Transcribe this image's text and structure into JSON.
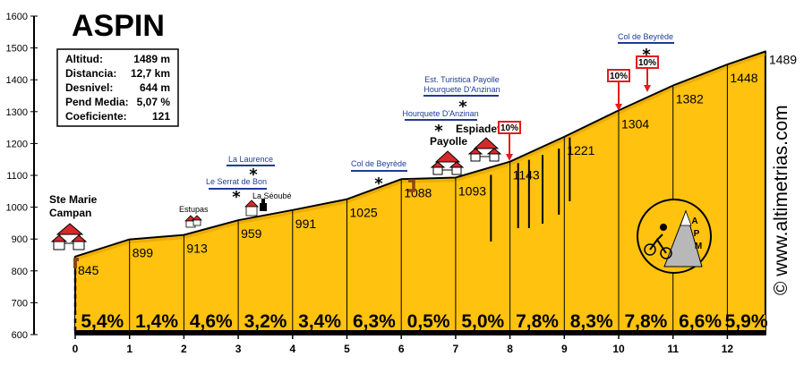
{
  "chart_data": {
    "type": "area",
    "title": "ASPIN",
    "xlabel": "",
    "ylabel": "",
    "ylim": [
      600,
      1600
    ],
    "xlim": [
      0,
      12.7
    ],
    "y_ticks": [
      "600",
      "700",
      "800",
      "900",
      "1000",
      "1100",
      "1200",
      "1300",
      "1400",
      "1500",
      "1600"
    ],
    "x_ticks": [
      "0",
      "1",
      "2",
      "3",
      "4",
      "5",
      "6",
      "7",
      "8",
      "9",
      "10",
      "11",
      "12"
    ],
    "grid": false,
    "x": [
      0,
      1,
      2,
      3,
      4,
      5,
      6,
      7,
      8,
      9,
      10,
      11,
      12,
      12.7
    ],
    "y": [
      845,
      899,
      913,
      959,
      991,
      1025,
      1088,
      1093,
      1143,
      1221,
      1304,
      1382,
      1448,
      1489
    ],
    "altitude_labels": [
      "845",
      "899",
      "913",
      "959",
      "991",
      "1025",
      "1088",
      "1093",
      "1143",
      "1221",
      "1304",
      "1382",
      "1448",
      "1489"
    ],
    "gradients": [
      "5,4%",
      "1,4%",
      "4,6%",
      "3,2%",
      "3,4%",
      "6,3%",
      "0,5%",
      "5,0%",
      "7,8%",
      "8,3%",
      "7,8%",
      "6,6%",
      "5,9%"
    ],
    "fill_color": "#ffc20e",
    "info_box": [
      {
        "label": "Altitud:",
        "value": "1489 m"
      },
      {
        "label": "Distancia:",
        "value": "12,7 km"
      },
      {
        "label": "Desnivel:",
        "value": "644 m"
      },
      {
        "label": "Pend Media:",
        "value": "5,07 %"
      },
      {
        "label": "Coeficiente:",
        "value": "121"
      }
    ],
    "places": {
      "start_line1": "Ste Marie",
      "start_line2": "Campan",
      "estupas": "Estupas",
      "seoube": "La Séoubé",
      "payolle": "Payolle",
      "espiadet": "Espiadet"
    },
    "signs": {
      "laurence": "La Laurence",
      "serrat": "Le Serrat de Bon",
      "beyrede_low": "Col de Beyrède",
      "est_line1": "Est. Turistica Payolle",
      "est_line2": "Hourquete D'Anzinan",
      "hourquete": "Hourquete D'Anzinan",
      "beyrede_top": "Col de Beyrède"
    },
    "max_gradients": [
      "10%",
      "10%",
      "10%"
    ],
    "logo": "APM",
    "copyright": "© www.altimetrias.com"
  }
}
